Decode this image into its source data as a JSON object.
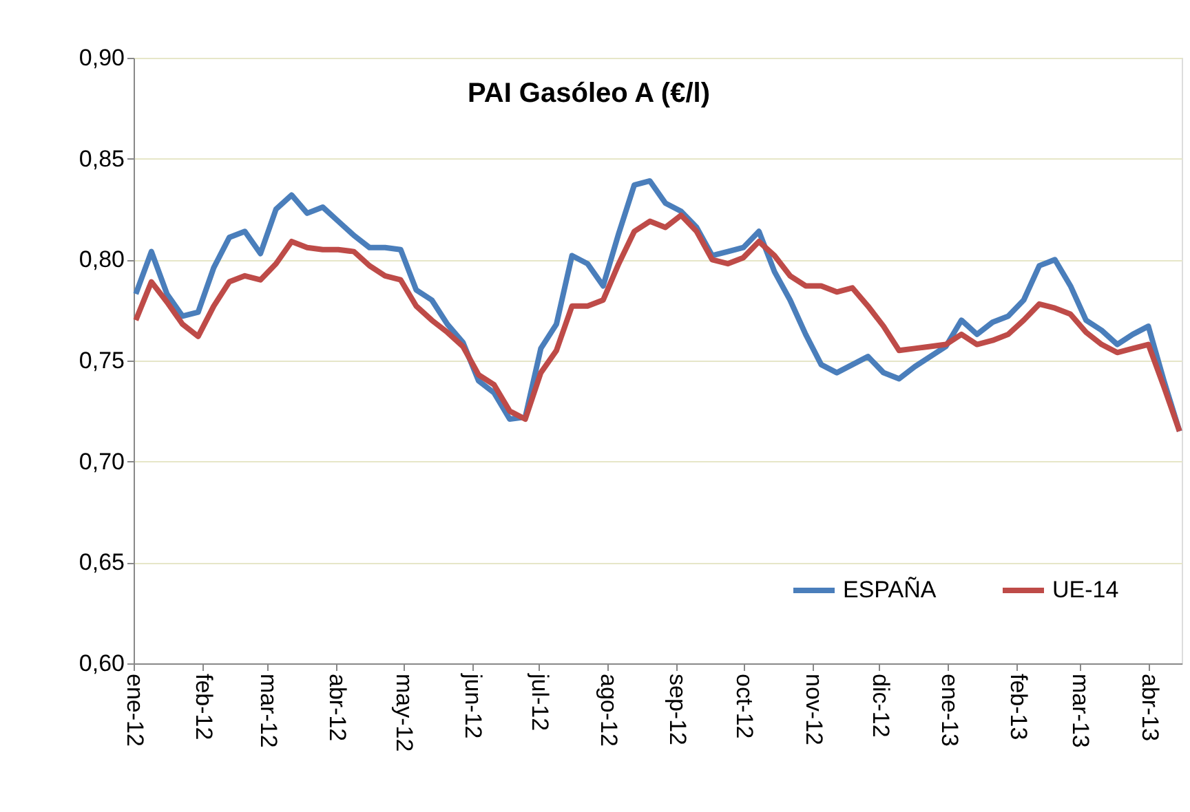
{
  "chart_data": {
    "type": "line",
    "title": "PAI Gasóleo A (€/l)",
    "x": [
      "2012-01-02",
      "2012-01-09",
      "2012-01-16",
      "2012-01-23",
      "2012-01-30",
      "2012-02-06",
      "2012-02-13",
      "2012-02-20",
      "2012-02-27",
      "2012-03-05",
      "2012-03-12",
      "2012-03-19",
      "2012-03-26",
      "2012-04-02",
      "2012-04-09",
      "2012-04-16",
      "2012-04-23",
      "2012-04-30",
      "2012-05-07",
      "2012-05-14",
      "2012-05-21",
      "2012-05-28",
      "2012-06-04",
      "2012-06-11",
      "2012-06-18",
      "2012-06-25",
      "2012-07-02",
      "2012-07-09",
      "2012-07-16",
      "2012-07-23",
      "2012-07-30",
      "2012-08-06",
      "2012-08-13",
      "2012-08-20",
      "2012-08-27",
      "2012-09-03",
      "2012-09-10",
      "2012-09-17",
      "2012-09-24",
      "2012-10-01",
      "2012-10-08",
      "2012-10-15",
      "2012-10-22",
      "2012-10-29",
      "2012-11-05",
      "2012-11-12",
      "2012-11-19",
      "2012-11-26",
      "2012-12-03",
      "2012-12-10",
      "2012-12-17",
      "2012-12-24",
      "2012-12-31",
      "2013-01-07",
      "2013-01-14",
      "2013-01-21",
      "2013-01-28",
      "2013-02-04",
      "2013-02-11",
      "2013-02-18",
      "2013-02-25",
      "2013-03-04",
      "2013-03-11",
      "2013-03-18",
      "2013-03-25",
      "2013-04-01",
      "2013-04-08",
      "2013-04-15"
    ],
    "series": [
      {
        "name": "ESPAÑA",
        "color": "#4a7ebb",
        "values": [
          0.783,
          0.804,
          0.783,
          0.772,
          0.774,
          0.796,
          0.811,
          0.814,
          0.803,
          0.825,
          0.832,
          0.823,
          0.826,
          0.819,
          0.812,
          0.806,
          0.806,
          0.805,
          0.785,
          0.78,
          0.768,
          0.759,
          0.74,
          0.734,
          0.721,
          0.722,
          0.756,
          0.768,
          0.802,
          0.798,
          0.787,
          0.813,
          0.837,
          0.839,
          0.828,
          0.824,
          0.816,
          0.802,
          0.804,
          0.806,
          0.814,
          0.794,
          0.78,
          0.763,
          0.748,
          0.744,
          0.748,
          0.752,
          0.744,
          0.741,
          0.747,
          0.752,
          0.757,
          0.77,
          0.763,
          0.769,
          0.772,
          0.78,
          0.797,
          0.8,
          0.787,
          0.77,
          0.765,
          0.758,
          0.763,
          0.767,
          0.74,
          0.715
        ]
      },
      {
        "name": "UE-14",
        "color": "#be4b48",
        "values": [
          0.77,
          0.789,
          0.779,
          0.768,
          0.762,
          0.777,
          0.789,
          0.792,
          0.79,
          0.798,
          0.809,
          0.806,
          0.805,
          0.805,
          0.804,
          0.797,
          0.792,
          0.79,
          0.777,
          0.77,
          0.764,
          0.757,
          0.743,
          0.738,
          0.725,
          0.721,
          0.744,
          0.755,
          0.777,
          0.777,
          0.78,
          0.798,
          0.814,
          0.819,
          0.816,
          0.822,
          0.814,
          0.8,
          0.798,
          0.801,
          0.809,
          0.802,
          0.792,
          0.787,
          0.787,
          0.784,
          0.786,
          0.777,
          0.767,
          0.755,
          0.756,
          0.757,
          0.758,
          0.763,
          0.758,
          0.76,
          0.763,
          0.77,
          0.778,
          0.776,
          0.773,
          0.764,
          0.758,
          0.754,
          0.756,
          0.758,
          0.737,
          0.715
        ]
      }
    ],
    "xlim": [
      "2012-01-01",
      "2013-04-16"
    ],
    "xticks": [
      {
        "value": "2012-01-01",
        "label": "ene-12"
      },
      {
        "value": "2012-02-01",
        "label": "feb-12"
      },
      {
        "value": "2012-03-01",
        "label": "mar-12"
      },
      {
        "value": "2012-04-01",
        "label": "abr-12"
      },
      {
        "value": "2012-05-01",
        "label": "may-12"
      },
      {
        "value": "2012-06-01",
        "label": "jun-12"
      },
      {
        "value": "2012-07-01",
        "label": "jul-12"
      },
      {
        "value": "2012-08-01",
        "label": "ago-12"
      },
      {
        "value": "2012-09-01",
        "label": "sep-12"
      },
      {
        "value": "2012-10-01",
        "label": "oct-12"
      },
      {
        "value": "2012-11-01",
        "label": "nov-12"
      },
      {
        "value": "2012-12-01",
        "label": "dic-12"
      },
      {
        "value": "2013-01-01",
        "label": "ene-13"
      },
      {
        "value": "2013-02-01",
        "label": "feb-13"
      },
      {
        "value": "2013-03-01",
        "label": "mar-13"
      },
      {
        "value": "2013-04-01",
        "label": "abr-13"
      }
    ],
    "ylim": [
      0.6,
      0.9
    ],
    "yticks": [
      {
        "value": 0.6,
        "label": "0,60"
      },
      {
        "value": 0.65,
        "label": "0,65"
      },
      {
        "value": 0.7,
        "label": "0,70"
      },
      {
        "value": 0.75,
        "label": "0,75"
      },
      {
        "value": 0.8,
        "label": "0,80"
      },
      {
        "value": 0.85,
        "label": "0,85"
      },
      {
        "value": 0.9,
        "label": "0,90"
      }
    ],
    "grid": "y",
    "legend": "bottom right",
    "marker": "none",
    "line_style": "solid"
  }
}
